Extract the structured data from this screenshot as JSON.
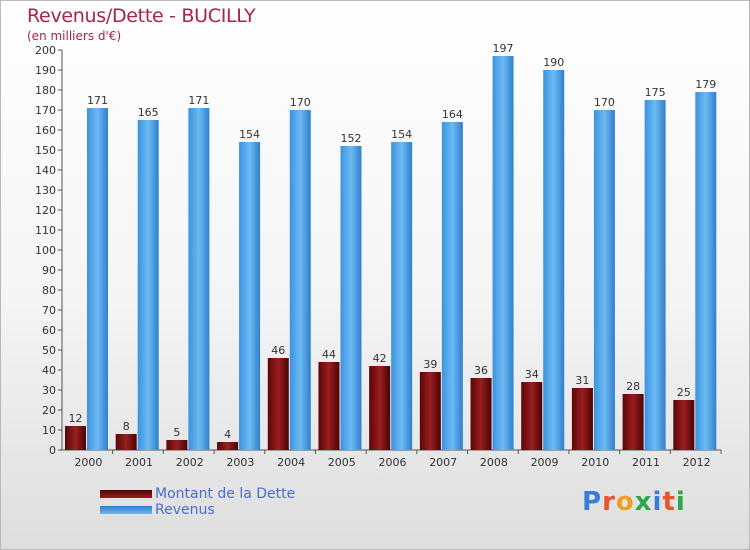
{
  "header": {
    "title": "Revenus/Dette - BUCILLY",
    "subtitle": "(en milliers d'€)"
  },
  "colors": {
    "dette": "#7a0e10",
    "revenus": "#4aa3ea",
    "title": "#a8244a",
    "legend_text": "#4a6cd6"
  },
  "legend": {
    "items": [
      {
        "label": "Montant de la Dette",
        "color": "#7a0e10"
      },
      {
        "label": "Revenus",
        "color": "#4aa3ea"
      }
    ]
  },
  "logo": {
    "text": "Proxiti"
  },
  "chart_data": {
    "type": "bar",
    "title": "Revenus/Dette - BUCILLY",
    "subtitle": "(en milliers d'€)",
    "categories": [
      "2000",
      "2001",
      "2002",
      "2003",
      "2004",
      "2005",
      "2006",
      "2007",
      "2008",
      "2009",
      "2010",
      "2011",
      "2012"
    ],
    "series": [
      {
        "name": "Montant de la Dette",
        "values": [
          12,
          8,
          5,
          4,
          46,
          44,
          42,
          39,
          36,
          34,
          31,
          28,
          25
        ]
      },
      {
        "name": "Revenus",
        "values": [
          171,
          165,
          171,
          154,
          170,
          152,
          154,
          164,
          197,
          190,
          170,
          175,
          179
        ]
      }
    ],
    "ylim": [
      0,
      200
    ],
    "ytick_step": 10,
    "xlabel": "",
    "ylabel": "",
    "grid": false,
    "legend_position": "bottom-left"
  }
}
